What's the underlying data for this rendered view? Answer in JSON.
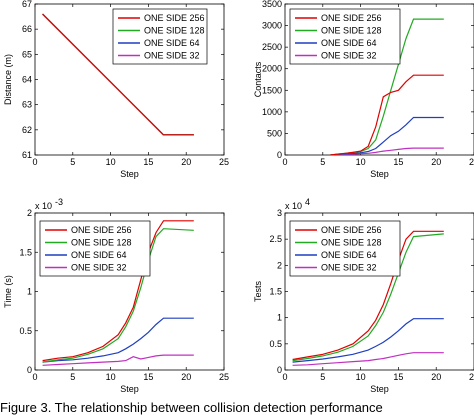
{
  "caption": "Figure 3. The relationship between collision detection performance",
  "chart_data": [
    {
      "type": "line",
      "xlabel": "Step",
      "ylabel": "Distance (m)",
      "xlim": [
        0,
        25
      ],
      "ylim": [
        61,
        67
      ],
      "xticks": [
        0,
        5,
        10,
        15,
        20,
        25
      ],
      "yticks": [
        61,
        62,
        63,
        64,
        65,
        66,
        67
      ],
      "exponent": "",
      "legend_position": "top-right",
      "series": [
        {
          "name": "ONE SIDE  256",
          "color": "#e00000",
          "x": [
            1,
            17,
            21
          ],
          "values": [
            66.6,
            61.8,
            61.8
          ]
        },
        {
          "name": "ONE SIDE  128",
          "color": "#22aa22",
          "x": [
            1,
            17,
            21
          ],
          "values": [
            66.6,
            61.8,
            61.8
          ]
        },
        {
          "name": "ONE SIDE  64",
          "color": "#1f3fbf",
          "x": [
            1,
            17,
            21
          ],
          "values": [
            66.6,
            61.8,
            61.8
          ]
        },
        {
          "name": "ONE SIDE  32",
          "color": "#c030c0",
          "x": [
            1,
            17,
            21
          ],
          "values": [
            66.6,
            61.8,
            61.8
          ]
        }
      ]
    },
    {
      "type": "line",
      "xlabel": "Step",
      "ylabel": "Contacts",
      "xlim": [
        0,
        25
      ],
      "ylim": [
        0,
        3500
      ],
      "xticks": [
        0,
        5,
        10,
        15,
        20,
        25
      ],
      "yticks": [
        0,
        500,
        1000,
        1500,
        2000,
        2500,
        3000,
        3500
      ],
      "exponent": "",
      "legend_position": "top-left",
      "series": [
        {
          "name": "ONE SIDE  256",
          "color": "#e00000",
          "x": [
            6,
            7,
            8,
            9,
            10,
            11,
            12,
            13,
            14,
            15,
            16,
            17,
            21
          ],
          "values": [
            0,
            20,
            40,
            60,
            90,
            200,
            650,
            1350,
            1450,
            1500,
            1700,
            1850,
            1850
          ]
        },
        {
          "name": "ONE SIDE  128",
          "color": "#22aa22",
          "x": [
            6,
            7,
            8,
            9,
            10,
            11,
            12,
            13,
            14,
            15,
            16,
            17,
            21
          ],
          "values": [
            0,
            20,
            40,
            60,
            80,
            150,
            350,
            900,
            1500,
            2100,
            2700,
            3150,
            3150
          ]
        },
        {
          "name": "ONE SIDE  64",
          "color": "#1f3fbf",
          "x": [
            6,
            7,
            8,
            9,
            10,
            11,
            12,
            13,
            14,
            15,
            16,
            17,
            21
          ],
          "values": [
            0,
            15,
            25,
            35,
            50,
            80,
            150,
            300,
            450,
            550,
            700,
            870,
            870
          ]
        },
        {
          "name": "ONE SIDE  32",
          "color": "#c030c0",
          "x": [
            6,
            7,
            8,
            9,
            10,
            11,
            12,
            13,
            14,
            15,
            16,
            17,
            21
          ],
          "values": [
            0,
            10,
            15,
            20,
            30,
            40,
            60,
            90,
            110,
            130,
            150,
            160,
            160
          ]
        }
      ]
    },
    {
      "type": "line",
      "xlabel": "Step",
      "ylabel": "Time (s)",
      "xlim": [
        0,
        25
      ],
      "ylim": [
        0,
        0.002
      ],
      "xticks": [
        0,
        5,
        10,
        15,
        20,
        25
      ],
      "yticks": [
        0,
        0.5,
        1,
        1.5,
        2
      ],
      "exponent": "x 10",
      "exponent_power": "-3",
      "legend_position": "top-left",
      "series": [
        {
          "name": "ONE SIDE  256",
          "color": "#e00000",
          "x": [
            1,
            3,
            5,
            7,
            9,
            11,
            12,
            13,
            14,
            15,
            16,
            17,
            21
          ],
          "values": [
            0.00012,
            0.00015,
            0.00017,
            0.00022,
            0.0003,
            0.00045,
            0.0006,
            0.0008,
            0.00115,
            0.0015,
            0.00175,
            0.0019,
            0.0019
          ]
        },
        {
          "name": "ONE SIDE  128",
          "color": "#22aa22",
          "x": [
            1,
            3,
            5,
            7,
            9,
            11,
            12,
            13,
            14,
            15,
            16,
            17,
            21
          ],
          "values": [
            0.0001,
            0.00013,
            0.00015,
            0.0002,
            0.00027,
            0.0004,
            0.00055,
            0.00075,
            0.00105,
            0.0014,
            0.0017,
            0.0018,
            0.00178
          ]
        },
        {
          "name": "ONE SIDE  64",
          "color": "#1f3fbf",
          "x": [
            1,
            3,
            5,
            7,
            9,
            11,
            12,
            13,
            14,
            15,
            16,
            17,
            21
          ],
          "values": [
            0.0001,
            0.00012,
            0.00013,
            0.00015,
            0.00018,
            0.00022,
            0.00027,
            0.00033,
            0.0004,
            0.00048,
            0.00058,
            0.00066,
            0.00066
          ]
        },
        {
          "name": "ONE SIDE  32",
          "color": "#c030c0",
          "x": [
            1,
            3,
            5,
            7,
            9,
            11,
            12,
            13,
            14,
            15,
            16,
            17,
            21
          ],
          "values": [
            6e-05,
            7e-05,
            8e-05,
            9e-05,
            0.0001,
            0.00011,
            0.00012,
            0.00017,
            0.00014,
            0.00016,
            0.00018,
            0.00019,
            0.00019
          ]
        }
      ]
    },
    {
      "type": "line",
      "xlabel": "Step",
      "ylabel": "Tests",
      "xlim": [
        0,
        25
      ],
      "ylim": [
        0,
        30000
      ],
      "xticks": [
        0,
        5,
        10,
        15,
        20,
        25
      ],
      "yticks": [
        0,
        0.5,
        1,
        1.5,
        2,
        2.5,
        3
      ],
      "exponent": "x 10",
      "exponent_power": "4",
      "legend_position": "top-left",
      "series": [
        {
          "name": "ONE SIDE  256",
          "color": "#e00000",
          "x": [
            1,
            3,
            5,
            7,
            9,
            11,
            12,
            13,
            14,
            15,
            16,
            17,
            21
          ],
          "values": [
            2000,
            2500,
            3000,
            3800,
            5000,
            7500,
            9500,
            12500,
            16500,
            21000,
            25000,
            26500,
            26500
          ]
        },
        {
          "name": "ONE SIDE  128",
          "color": "#22aa22",
          "x": [
            1,
            3,
            5,
            7,
            9,
            11,
            12,
            13,
            14,
            15,
            16,
            17,
            21
          ],
          "values": [
            1800,
            2200,
            2700,
            3400,
            4500,
            6500,
            8500,
            11000,
            14500,
            18500,
            22500,
            25500,
            26000
          ]
        },
        {
          "name": "ONE SIDE  64",
          "color": "#1f3fbf",
          "x": [
            1,
            3,
            5,
            7,
            9,
            11,
            12,
            13,
            14,
            15,
            16,
            17,
            21
          ],
          "values": [
            1500,
            1800,
            2100,
            2500,
            3000,
            3800,
            4500,
            5300,
            6300,
            7500,
            8800,
            9800,
            9800
          ]
        },
        {
          "name": "ONE SIDE  32",
          "color": "#c030c0",
          "x": [
            1,
            3,
            5,
            7,
            9,
            11,
            12,
            13,
            14,
            15,
            16,
            17,
            21
          ],
          "values": [
            900,
            1000,
            1200,
            1400,
            1600,
            1800,
            2000,
            2200,
            2500,
            2800,
            3100,
            3300,
            3300
          ]
        }
      ]
    }
  ]
}
